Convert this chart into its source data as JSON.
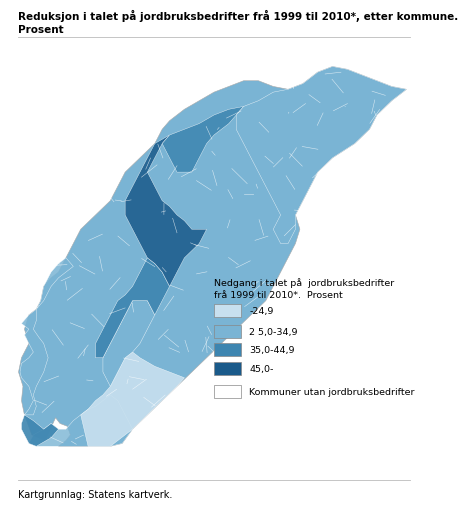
{
  "title_line1": "Reduksjon i talet på jordbruksbedrifter frå 1999 til 2010*, etter kommune.",
  "title_line2": "Prosent",
  "legend_title": "Nedgang i talet på  jordbruksbedrifter\nfrå 1999 til 2010*.  Prosent",
  "legend_items": [
    {
      "label": "-24,9",
      "color": "#c8e0ef"
    },
    {
      "label": "2 5,0-34,9",
      "color": "#7ab4d4"
    },
    {
      "label": "35,0-44,9",
      "color": "#3d85b0"
    },
    {
      "label": "45,0-",
      "color": "#1a5a8a"
    },
    {
      "label": "Kommuner utan jordbruksbedrifter",
      "color": "#ffffff"
    }
  ],
  "footer": "Kartgrunnlag: Statens kartverk.",
  "title_fontsize": 7.5,
  "legend_title_fontsize": 6.8,
  "legend_fontsize": 6.8,
  "footer_fontsize": 7.0,
  "background_color": "#ffffff",
  "separator_color": "#bbbbbb"
}
